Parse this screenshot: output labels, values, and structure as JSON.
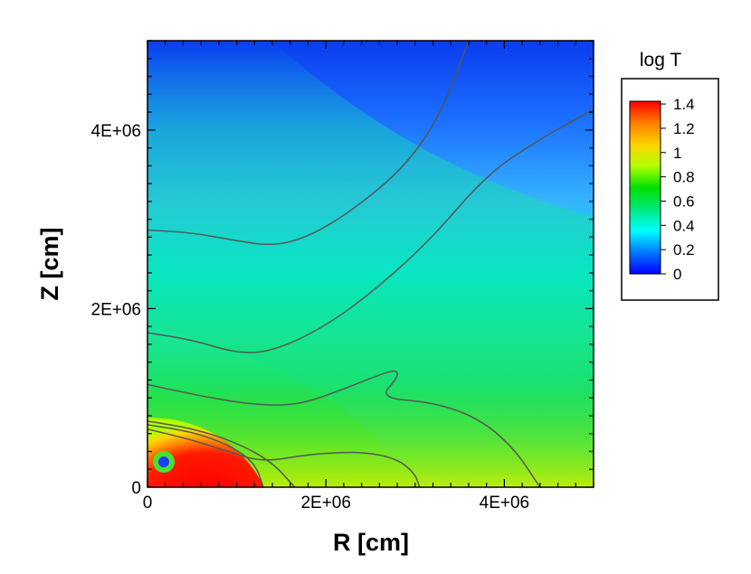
{
  "chart_data": {
    "type": "heatmap",
    "xlabel": "R [cm]",
    "ylabel": "Z [cm]",
    "xlim": [
      0,
      5000000
    ],
    "ylim": [
      0,
      5000000
    ],
    "x_ticks": [
      {
        "value": 0,
        "label": "0"
      },
      {
        "value": 2000000,
        "label": "2E+06"
      },
      {
        "value": 4000000,
        "label": "4E+06"
      }
    ],
    "y_ticks": [
      {
        "value": 0,
        "label": "0"
      },
      {
        "value": 2000000,
        "label": "2E+06"
      },
      {
        "value": 4000000,
        "label": "4E+06"
      }
    ],
    "colorbar": {
      "title": "log T",
      "min": 0,
      "max": 1.4,
      "ticks": [
        {
          "value": 1.4,
          "label": "1.4"
        },
        {
          "value": 1.2,
          "label": "1.2"
        },
        {
          "value": 1.0,
          "label": "1"
        },
        {
          "value": 0.8,
          "label": "0.8"
        },
        {
          "value": 0.6,
          "label": "0.6"
        },
        {
          "value": 0.4,
          "label": "0.4"
        },
        {
          "value": 0.2,
          "label": "0.2"
        },
        {
          "value": 0.0,
          "label": "0"
        }
      ],
      "colors": [
        "#0000ff",
        "#0078ff",
        "#00ffff",
        "#00e87a",
        "#00e000",
        "#b4ff00",
        "#ffd200",
        "#ff7d00",
        "#ff0000"
      ]
    },
    "contour_lines": [
      {
        "level": 0.2,
        "points": [
          [
            0,
            2880000
          ],
          [
            500000,
            2850000
          ],
          [
            1000000,
            2760000
          ],
          [
            1400000,
            2700000
          ],
          [
            1800000,
            2800000
          ],
          [
            2300000,
            3100000
          ],
          [
            2900000,
            3600000
          ],
          [
            3300000,
            4200000
          ],
          [
            3600000,
            5000000
          ]
        ]
      },
      {
        "level": 0.4,
        "points": [
          [
            0,
            1730000
          ],
          [
            500000,
            1650000
          ],
          [
            1000000,
            1500000
          ],
          [
            1400000,
            1520000
          ],
          [
            2000000,
            1800000
          ],
          [
            2600000,
            2250000
          ],
          [
            3200000,
            2800000
          ],
          [
            3800000,
            3500000
          ],
          [
            4400000,
            3900000
          ],
          [
            5000000,
            4230000
          ]
        ]
      },
      {
        "level": 0.6,
        "points": [
          [
            0,
            1150000
          ],
          [
            600000,
            1020000
          ],
          [
            1200000,
            920000
          ],
          [
            1700000,
            920000
          ],
          [
            2200000,
            1100000
          ],
          [
            2600000,
            1260000
          ],
          [
            2800000,
            1320000
          ],
          [
            2800000,
            1220000
          ],
          [
            2600000,
            1000000
          ],
          [
            3200000,
            950000
          ],
          [
            3700000,
            780000
          ],
          [
            4100000,
            450000
          ],
          [
            4400000,
            0
          ]
        ]
      },
      {
        "level": 0.8,
        "points": [
          [
            0,
            650000
          ],
          [
            500000,
            530000
          ],
          [
            900000,
            400000
          ],
          [
            1300000,
            280000
          ],
          [
            1800000,
            370000
          ],
          [
            2400000,
            400000
          ],
          [
            2800000,
            320000
          ],
          [
            3000000,
            150000
          ],
          [
            3050000,
            0
          ]
        ]
      },
      {
        "level": 1.0,
        "points": [
          [
            0,
            740000
          ],
          [
            500000,
            660000
          ],
          [
            1000000,
            500000
          ],
          [
            1400000,
            280000
          ],
          [
            1650000,
            0
          ]
        ]
      },
      {
        "level": 1.2,
        "points": [
          [
            0,
            700000
          ],
          [
            500000,
            620000
          ],
          [
            900000,
            480000
          ],
          [
            1200000,
            280000
          ],
          [
            1300000,
            0
          ]
        ]
      }
    ]
  }
}
